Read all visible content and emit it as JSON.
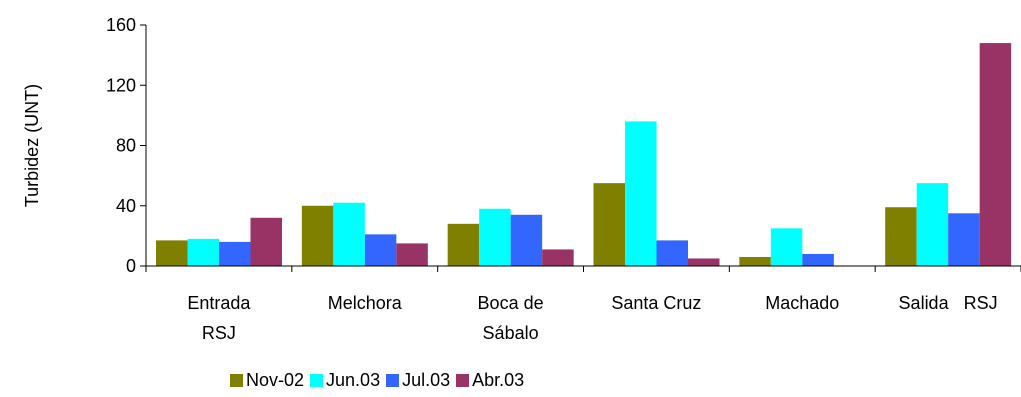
{
  "chart_data": {
    "type": "bar",
    "title": "",
    "xlabel": "",
    "ylabel": "Turbidez (UNT)",
    "ylim": [
      0,
      160
    ],
    "yticks": [
      0,
      40,
      80,
      120,
      160
    ],
    "categories": [
      [
        "Entrada",
        "RSJ"
      ],
      [
        "Melchora"
      ],
      [
        "Boca de",
        "Sábalo"
      ],
      [
        "Santa Cruz"
      ],
      [
        "Machado"
      ],
      [
        "Salida   RSJ"
      ]
    ],
    "series": [
      {
        "name": "Nov-02",
        "color": "#808000",
        "values": [
          17,
          40,
          28,
          55,
          6,
          39
        ]
      },
      {
        "name": "Jun.03",
        "color": "#00FFFF",
        "values": [
          18,
          42,
          38,
          96,
          25,
          55
        ]
      },
      {
        "name": "Jul.03",
        "color": "#3366FF",
        "values": [
          16,
          21,
          34,
          17,
          8,
          35
        ]
      },
      {
        "name": "Abr.03",
        "color": "#993366",
        "values": [
          32,
          15,
          11,
          5,
          0,
          148
        ]
      }
    ],
    "grid": false,
    "legend_position": "bottom"
  }
}
